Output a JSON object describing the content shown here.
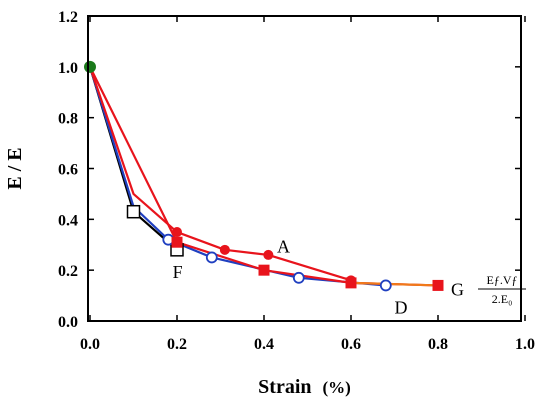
{
  "chart_data": {
    "type": "line",
    "xlabel": "Strain",
    "xlabel_unit": "(%)",
    "ylabel": "E / E",
    "xlim": [
      0,
      1.0
    ],
    "ylim": [
      0,
      1.2
    ],
    "xticks": [
      "0.0",
      "0.2",
      "0.4",
      "0.6",
      "0.8",
      "1.0"
    ],
    "yticks": [
      "0.0",
      "0.2",
      "0.4",
      "0.6",
      "0.8",
      "1.0",
      "1.2"
    ],
    "xtick_values": [
      0,
      0.2,
      0.4,
      0.6,
      0.8,
      1.0
    ],
    "ytick_values": [
      0,
      0.2,
      0.4,
      0.6,
      0.8,
      1.0,
      1.2
    ],
    "grid": false,
    "series": [
      {
        "id": "black",
        "color": "#000000",
        "marker": "open-square",
        "x": [
          0.0,
          0.1,
          0.2
        ],
        "y": [
          1.0,
          0.43,
          0.28
        ],
        "markers_at": [
          1,
          2
        ]
      },
      {
        "id": "blue",
        "color": "#1f3fc0",
        "marker": "open-circle",
        "x": [
          0.0,
          0.1,
          0.18,
          0.28,
          0.48,
          0.68
        ],
        "y": [
          1.0,
          0.45,
          0.32,
          0.25,
          0.17,
          0.14
        ],
        "markers_at": [
          2,
          3,
          4,
          5
        ]
      },
      {
        "id": "red-A",
        "color": "#e8141c",
        "marker": "filled-circle",
        "x": [
          0.0,
          0.1,
          0.2,
          0.31,
          0.41,
          0.6
        ],
        "y": [
          1.0,
          0.5,
          0.35,
          0.28,
          0.26,
          0.16
        ],
        "markers_at": [
          2,
          3,
          4,
          5
        ]
      },
      {
        "id": "red-G",
        "color": "#e8141c",
        "marker": "filled-square",
        "x": [
          0.0,
          0.2,
          0.4,
          0.6,
          0.8
        ],
        "y": [
          1.0,
          0.31,
          0.2,
          0.15,
          0.14
        ],
        "markers_at": [
          1,
          2,
          3,
          4
        ]
      },
      {
        "id": "orange-tail",
        "color": "#f07a1a",
        "marker": "none",
        "x": [
          0.6,
          0.8
        ],
        "y": [
          0.15,
          0.14
        ],
        "markers_at": []
      }
    ],
    "start_point": {
      "x": 0.0,
      "y": 1.0,
      "color": "#1a7a1a"
    },
    "annotations": [
      {
        "text": "A",
        "x": 0.43,
        "y": 0.27
      },
      {
        "text": "F",
        "x": 0.19,
        "y": 0.17
      },
      {
        "text": "D",
        "x": 0.7,
        "y": 0.03
      },
      {
        "text": "G",
        "x": 0.83,
        "y": 0.1
      }
    ],
    "fraction": {
      "numerator": "Eƒ.Vƒ",
      "denominator": "2.E₀"
    }
  }
}
